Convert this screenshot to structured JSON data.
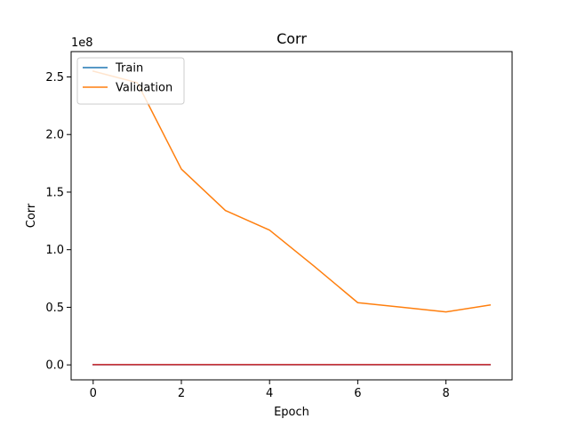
{
  "chart_data": {
    "type": "line",
    "title": "Corr",
    "xlabel": "Epoch",
    "ylabel": "Corr",
    "y_multiplier_label": "1e8",
    "x": [
      0,
      1,
      2,
      3,
      4,
      5,
      6,
      7,
      8,
      9
    ],
    "xlim": [
      -0.5,
      9.5
    ],
    "ylim": [
      -0.13,
      2.72
    ],
    "x_ticks": [
      0,
      2,
      4,
      6,
      8
    ],
    "x_tick_labels": [
      "0",
      "2",
      "4",
      "6",
      "8"
    ],
    "y_ticks": [
      0.0,
      0.5,
      1.0,
      1.5,
      2.0,
      2.5
    ],
    "y_tick_labels": [
      "0.0",
      "0.5",
      "1.0",
      "1.5",
      "2.0",
      "2.5"
    ],
    "grid": false,
    "legend_position": "top-left",
    "series": [
      {
        "name": "Train",
        "color": "#1f77b4",
        "values": [
          0.001,
          0.001,
          0.001,
          0.001,
          0.001,
          0.001,
          0.001,
          0.001,
          0.001,
          0.001
        ]
      },
      {
        "name": "Validation",
        "color": "#ff7f0e",
        "values": [
          2.55,
          2.45,
          1.7,
          1.34,
          1.17,
          0.86,
          0.54,
          0.5,
          0.46,
          0.52
        ]
      },
      {
        "name": "",
        "color": "#d62728",
        "values": [
          0.002,
          0.002,
          0.002,
          0.002,
          0.002,
          0.002,
          0.002,
          0.002,
          0.002,
          0.002
        ]
      }
    ]
  }
}
